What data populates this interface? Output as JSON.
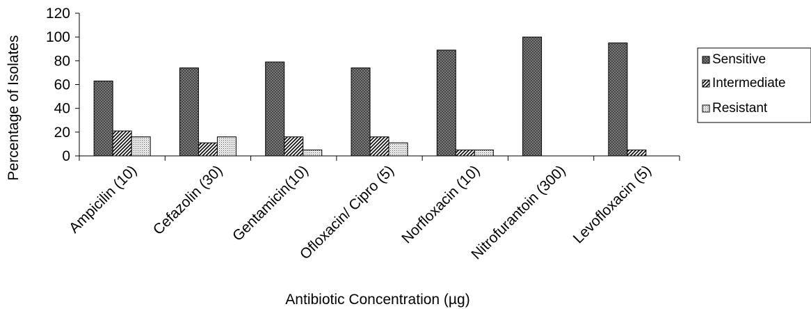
{
  "chart_data": {
    "type": "bar",
    "title": "",
    "xlabel": "Antibiotic Concentration (µg)",
    "ylabel": "Percentage of Isolates",
    "ylim": [
      0,
      120
    ],
    "yticks": [
      "0",
      "20",
      "40",
      "60",
      "80",
      "100",
      "120"
    ],
    "grid": false,
    "legend_position": "right",
    "categories": [
      "Ampicilin (10)",
      "Cefazolin (30)",
      "Gentamicin(10)",
      "Ofloxacin/ Cipro (5)",
      "Norfloxacin (10)",
      "Nitrofurantoin (300)",
      "Levofloxacin (5)"
    ],
    "series": [
      {
        "name": "Sensitive",
        "pattern": "crosshatch-dark",
        "values": [
          63,
          74,
          79,
          74,
          89,
          100,
          95
        ]
      },
      {
        "name": "Intermediate",
        "pattern": "diagonal-stripes",
        "values": [
          21,
          11,
          16,
          16,
          5,
          0,
          5
        ]
      },
      {
        "name": "Resistant",
        "pattern": "light-dots",
        "values": [
          16,
          16,
          5,
          11,
          5,
          0,
          0
        ]
      }
    ]
  }
}
